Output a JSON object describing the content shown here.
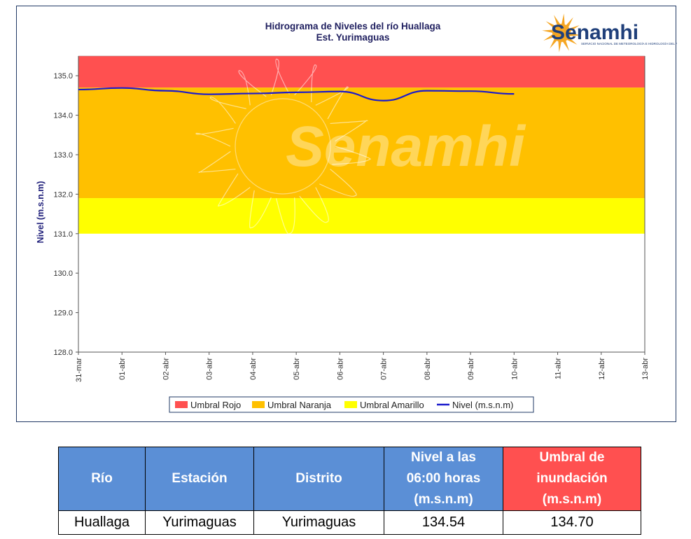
{
  "chart_data": {
    "type": "line",
    "title": "Hidrograma de Niveles del río Huallaga",
    "subtitle": "Est. Yurimaguas",
    "ylabel": "Nivel (m.s.n.m)",
    "xlabel": "",
    "ylim": [
      128.0,
      135.5
    ],
    "yticks": [
      "128.0",
      "129.0",
      "130.0",
      "131.0",
      "132.0",
      "133.0",
      "134.0",
      "135.0"
    ],
    "categories": [
      "31-mar",
      "01-abr",
      "02-abr",
      "03-abr",
      "04-abr",
      "05-abr",
      "06-abr",
      "07-abr",
      "08-abr",
      "09-abr",
      "10-abr",
      "11-abr",
      "12-abr",
      "13-abr"
    ],
    "bands": [
      {
        "name": "Umbral Rojo",
        "from": 134.7,
        "to": 135.5,
        "color": "#ff5050"
      },
      {
        "name": "Umbral Naranja",
        "from": 131.9,
        "to": 134.7,
        "color": "#ffc000"
      },
      {
        "name": "Umbral Amarillo",
        "from": 131.0,
        "to": 131.9,
        "color": "#ffff00"
      }
    ],
    "series": [
      {
        "name": "Nivel (m.s.n.m)",
        "color": "#1a1acc",
        "x": [
          0,
          1,
          2,
          3,
          4,
          5,
          6,
          7,
          8,
          9,
          10
        ],
        "values": [
          134.65,
          134.69,
          134.62,
          134.53,
          134.55,
          134.58,
          134.6,
          134.37,
          134.62,
          134.61,
          134.54
        ]
      }
    ],
    "legend": [
      "Umbral Rojo",
      "Umbral Naranja",
      "Umbral Amarillo",
      "Nivel (m.s.n.m)"
    ],
    "legend_position": "bottom",
    "grid": false
  },
  "logo": {
    "name": "Senamhi",
    "tagline": "SERVICIO NACIONAL DE METEOROLOGÍA E HIDROLOGÍA DEL PERÚ"
  },
  "watermark": "Senamhi",
  "table": {
    "headers": [
      "Río",
      "Estación",
      "Distrito",
      "Nivel a las 06:00 horas (m.s.n.m)",
      "Umbral de inundación (m.s.n.m)"
    ],
    "header_lines": [
      [
        "Río"
      ],
      [
        "Estación"
      ],
      [
        "Distrito"
      ],
      [
        "Nivel a las",
        "06:00 horas",
        "(m.s.n.m)"
      ],
      [
        "Umbral de",
        "inundación",
        "(m.s.n.m)"
      ]
    ],
    "row": [
      "Huallaga",
      "Yurimaguas",
      "Yurimaguas",
      "134.54",
      "134.70"
    ]
  },
  "colors": {
    "header_blue": "#5b8fd6",
    "header_red": "#ff5050",
    "frame": "#1f3864"
  }
}
